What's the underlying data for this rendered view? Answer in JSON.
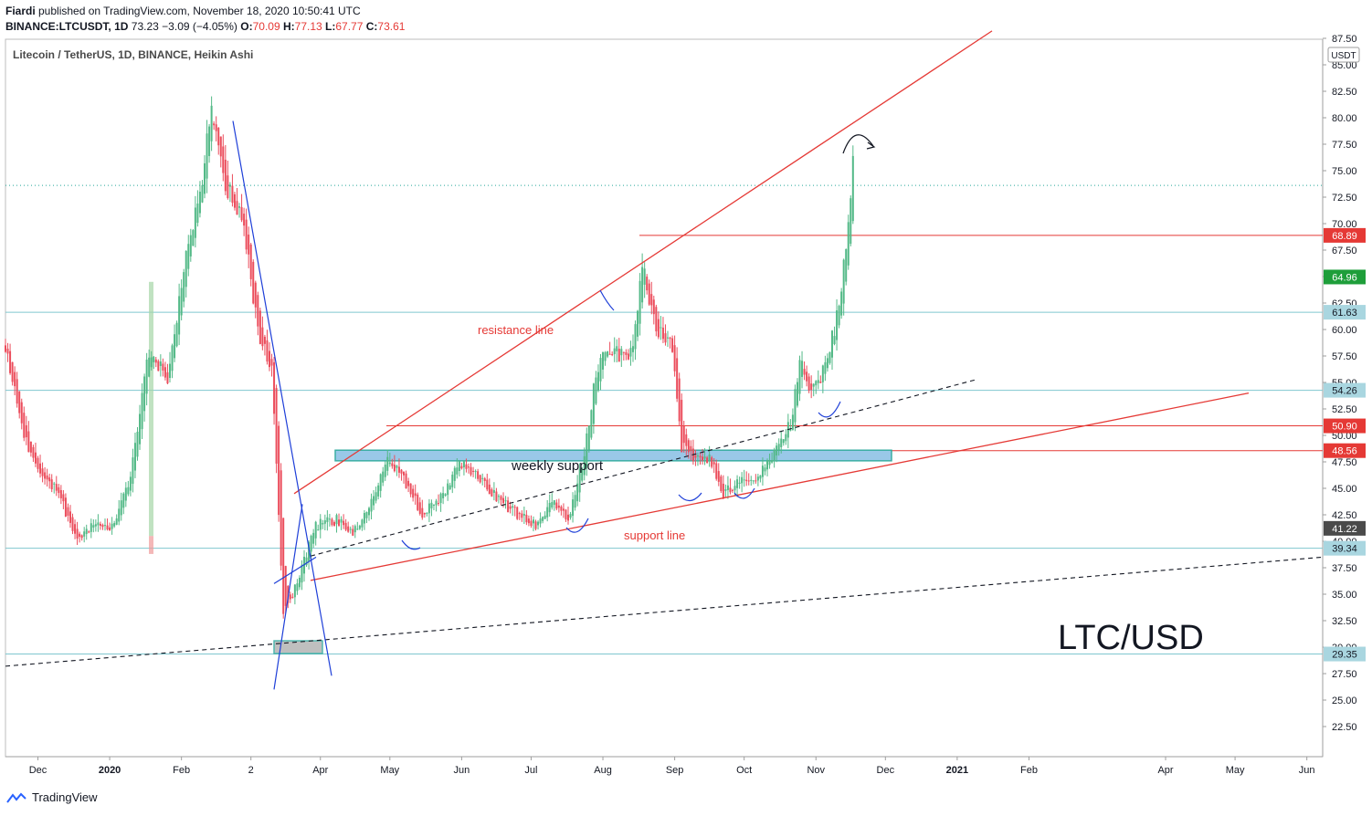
{
  "header": {
    "author": "Fiardi",
    "publish_line": " published on TradingView.com, November 18, 2020 10:50:41 UTC",
    "symbol": "BINANCE:LTCUSDT, 1D",
    "last": "73.23",
    "change": "−3.09 (−4.05%)",
    "o_label": "O:",
    "o_value": "70.09",
    "h_label": "H:",
    "h_value": "77.13",
    "l_label": "L:",
    "l_value": "67.77",
    "c_label": "C:",
    "c_value": "73.61"
  },
  "footer": {
    "brand": "TradingView"
  },
  "chart_data": {
    "type": "candlestick",
    "legend": "Litecoin / TetherUS, 1D, BINANCE, Heikin Ashi",
    "currency_badge": "USDT",
    "ylim": [
      20.5,
      88.0
    ],
    "y_ticks": [
      "87.50",
      "85.00",
      "82.50",
      "80.00",
      "77.50",
      "75.00",
      "72.50",
      "70.00",
      "67.50",
      "65.00",
      "62.50",
      "60.00",
      "57.50",
      "55.00",
      "52.50",
      "50.00",
      "47.50",
      "45.00",
      "42.50",
      "40.00",
      "37.50",
      "35.00",
      "32.50",
      "30.00",
      "27.50",
      "25.00",
      "22.50"
    ],
    "x_ticks": [
      "Dec",
      "2020",
      "Feb",
      "2",
      "Apr",
      "May",
      "Jun",
      "Jul",
      "Aug",
      "Sep",
      "Oct",
      "Nov",
      "Dec",
      "2021",
      "Feb",
      "Apr",
      "May",
      "Jun"
    ],
    "price_badges": [
      {
        "label": "68.89",
        "value": 68.89,
        "color": "#e53935"
      },
      {
        "label": "64.96",
        "value": 64.96,
        "color": "#1e9e3a"
      },
      {
        "label": "61.63",
        "value": 61.63,
        "color": "#a9d6e0"
      },
      {
        "label": "54.26",
        "value": 54.26,
        "color": "#a9d6e0"
      },
      {
        "label": "50.90",
        "value": 50.9,
        "color": "#e53935"
      },
      {
        "label": "48.56",
        "value": 48.56,
        "color": "#e53935"
      },
      {
        "label": "41.22",
        "value": 41.22,
        "color": "#4a4a4a"
      },
      {
        "label": "39.34",
        "value": 39.34,
        "color": "#a9d6e0"
      },
      {
        "label": "29.35",
        "value": 29.35,
        "color": "#a9d6e0"
      }
    ],
    "horizontal_levels": [
      {
        "value": 68.89,
        "color": "#e53935"
      },
      {
        "value": 61.63,
        "color": "#7fc7cf"
      },
      {
        "value": 54.26,
        "color": "#7fc7cf"
      },
      {
        "value": 50.9,
        "color": "#e53935"
      },
      {
        "value": 48.56,
        "color": "#e53935"
      },
      {
        "value": 39.34,
        "color": "#7fc7cf"
      },
      {
        "value": 29.35,
        "color": "#7fc7cf"
      },
      {
        "value": 73.61,
        "color": "#26a69a"
      }
    ],
    "annotations": {
      "resistance": "resistance line",
      "support": "support line",
      "zone": "weekly support",
      "big_label": "LTC/USD"
    },
    "series": [
      {
        "name": "price",
        "points": [
          [
            "Nov 17 2019",
            58.5
          ],
          [
            "Nov 25 2019",
            50.0
          ],
          [
            "Dec 3 2019",
            46.0
          ],
          [
            "Dec 10 2019",
            44.5
          ],
          [
            "Dec 18 2019",
            40.0
          ],
          [
            "Dec 24 2019",
            41.5
          ],
          [
            "Jan 2 2020",
            41.5
          ],
          [
            "Jan 10 2020",
            46.0
          ],
          [
            "Jan 18 2020",
            58.0
          ],
          [
            "Jan 26 2020",
            55.5
          ],
          [
            "Feb 3 2020",
            67.0
          ],
          [
            "Feb 10 2020",
            74.5
          ],
          [
            "Feb 14 2020",
            81.0
          ],
          [
            "Feb 20 2020",
            73.5
          ],
          [
            "Feb 27 2020",
            71.0
          ],
          [
            "Mar 5 2020",
            60.0
          ],
          [
            "Mar 11 2020",
            56.0
          ],
          [
            "Mar 16 2020",
            33.0
          ],
          [
            "Mar 22 2020",
            36.0
          ],
          [
            "Mar 30 2020",
            41.5
          ],
          [
            "Apr 8 2020",
            42.0
          ],
          [
            "Apr 15 2020",
            41.0
          ],
          [
            "Apr 22 2020",
            43.0
          ],
          [
            "Apr 30 2020",
            48.0
          ],
          [
            "May 8 2020",
            45.5
          ],
          [
            "May 15 2020",
            42.5
          ],
          [
            "May 23 2020",
            44.0
          ],
          [
            "May 31 2020",
            47.5
          ],
          [
            "Jun 9 2020",
            46.0
          ],
          [
            "Jun 17 2020",
            44.0
          ],
          [
            "Jun 25 2020",
            42.5
          ],
          [
            "Jul 3 2020",
            41.5
          ],
          [
            "Jul 10 2020",
            44.0
          ],
          [
            "Jul 17 2020",
            42.0
          ],
          [
            "Jul 24 2020",
            48.0
          ],
          [
            "Jul 29 2020",
            56.0
          ],
          [
            "Aug 3 2020",
            58.5
          ],
          [
            "Aug 9 2020",
            57.5
          ],
          [
            "Aug 14 2020",
            58.0
          ],
          [
            "Aug 18 2020",
            66.0
          ],
          [
            "Aug 24 2020",
            60.0
          ],
          [
            "Aug 31 2020",
            58.5
          ],
          [
            "Sep 4 2020",
            49.0
          ],
          [
            "Sep 10 2020",
            47.5
          ],
          [
            "Sep 16 2020",
            48.0
          ],
          [
            "Sep 22 2020",
            44.5
          ],
          [
            "Sep 29 2020",
            45.5
          ],
          [
            "Oct 7 2020",
            46.0
          ],
          [
            "Oct 14 2020",
            48.5
          ],
          [
            "Oct 21 2020",
            51.0
          ],
          [
            "Oct 25 2020",
            57.0
          ],
          [
            "Oct 30 2020",
            54.0
          ],
          [
            "Nov 4 2020",
            56.0
          ],
          [
            "Nov 9 2020",
            60.0
          ],
          [
            "Nov 12 2020",
            64.0
          ],
          [
            "Nov 14 2020",
            68.0
          ],
          [
            "Nov 16 2020",
            73.0
          ],
          [
            "Nov 17 2020",
            77.0
          ],
          [
            "Nov 18 2020",
            73.61
          ]
        ]
      }
    ]
  }
}
